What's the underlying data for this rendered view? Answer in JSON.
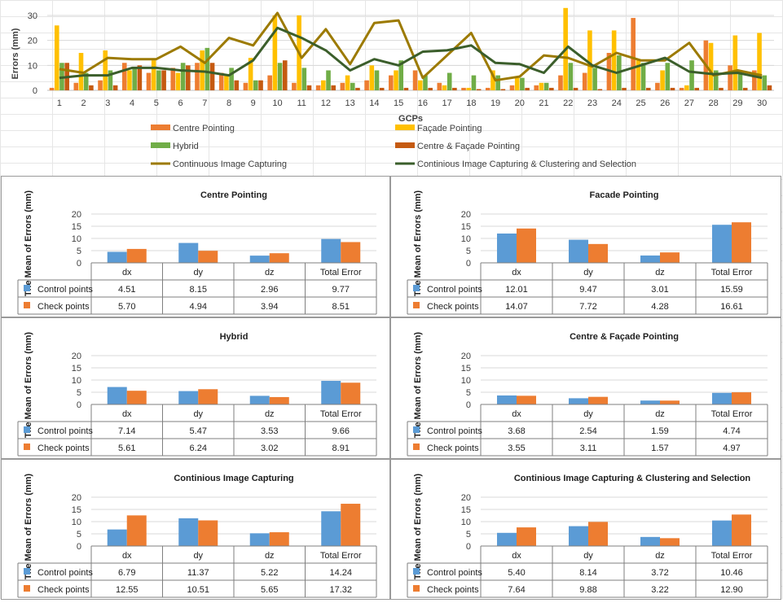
{
  "chart_data": [
    {
      "type": "bar+line",
      "title": "",
      "xlabel": "GCPs",
      "ylabel": "Errors (mm)",
      "ylim": [
        0,
        30
      ],
      "yticks": [
        "0",
        "10",
        "20",
        "30"
      ],
      "categories": [
        "1",
        "2",
        "3",
        "4",
        "5",
        "6",
        "7",
        "8",
        "9",
        "10",
        "11",
        "12",
        "13",
        "14",
        "15",
        "16",
        "17",
        "18",
        "19",
        "20",
        "21",
        "22",
        "23",
        "24",
        "25",
        "26",
        "27",
        "28",
        "29",
        "30"
      ],
      "bar_series": [
        {
          "name": "Centre Pointing",
          "color": "#ED7D31",
          "values": [
            1,
            3,
            4,
            11,
            7,
            9,
            11,
            7,
            3,
            6,
            3,
            2,
            3,
            4,
            6,
            8,
            3,
            1,
            1,
            2,
            2,
            6,
            7,
            15,
            29,
            3,
            1,
            20,
            10,
            8
          ]
        },
        {
          "name": "Façade Pointing",
          "color": "#FFC000",
          "values": [
            26,
            15,
            16,
            8,
            12,
            7,
            16,
            6,
            13,
            30,
            30,
            4,
            6,
            10,
            8,
            4,
            2,
            1,
            8,
            5,
            3,
            33,
            24,
            24,
            12,
            8,
            2,
            19,
            22,
            23
          ]
        },
        {
          "name": "Hybrid",
          "color": "#70AD47",
          "values": [
            11,
            7,
            8,
            9,
            8,
            11,
            17,
            9,
            4,
            11,
            9,
            8,
            3,
            8,
            12,
            6,
            7,
            6,
            6,
            5,
            3,
            11,
            9,
            14,
            11,
            11,
            12,
            8,
            8,
            6
          ]
        },
        {
          "name": "Centre & Façade Pointing",
          "color": "#C55A11",
          "values": [
            11,
            2,
            2,
            10,
            8,
            10,
            11,
            4,
            4,
            12,
            2,
            2,
            1,
            1,
            1,
            1,
            1,
            0.5,
            0.5,
            1,
            1,
            1,
            0.5,
            1,
            1,
            1,
            1,
            1,
            1,
            2
          ]
        }
      ],
      "line_series": [
        {
          "name": "Continuous Image Capturing",
          "color": "#9C7A00",
          "values": [
            8.5,
            7,
            13,
            12.5,
            12.5,
            17.5,
            11,
            21,
            18,
            31,
            13,
            24.5,
            10.5,
            27,
            28,
            5,
            14,
            23,
            4,
            5.5,
            14,
            13,
            9.5,
            15,
            12,
            12,
            19,
            6,
            8,
            6
          ]
        },
        {
          "name": "Continious Image Capturing & Clustering and Selection",
          "color": "#3B5E2B",
          "values": [
            5,
            6,
            6,
            9,
            9,
            8,
            7.5,
            6,
            12,
            25,
            21,
            16,
            8,
            12.5,
            10,
            15.5,
            16,
            18,
            11,
            10.5,
            7,
            17.5,
            10,
            7,
            10,
            13,
            7.5,
            6.5,
            7,
            5
          ]
        }
      ]
    },
    {
      "type": "bar",
      "title": "Centre Pointing",
      "ylabel": "The Mean of Errors (mm)",
      "ylim": [
        0,
        20
      ],
      "yticks": [
        "0",
        "5",
        "10",
        "15",
        "20"
      ],
      "categories": [
        "dx",
        "dy",
        "dz",
        "Total Error"
      ],
      "series": [
        {
          "name": "Control points",
          "color": "#5B9BD5",
          "values": [
            4.51,
            8.15,
            2.96,
            9.77
          ],
          "labels": [
            "4.51",
            "8.15",
            "2.96",
            "9.77"
          ]
        },
        {
          "name": "Check points",
          "color": "#ED7D31",
          "values": [
            5.7,
            4.94,
            3.94,
            8.51
          ],
          "labels": [
            "5.70",
            "4.94",
            "3.94",
            "8.51"
          ]
        }
      ]
    },
    {
      "type": "bar",
      "title": "Facade Pointing",
      "ylabel": "The Mean of Errors (mm)",
      "ylim": [
        0,
        20
      ],
      "yticks": [
        "0",
        "5",
        "10",
        "15",
        "20"
      ],
      "categories": [
        "dx",
        "dy",
        "dz",
        "Total Error"
      ],
      "series": [
        {
          "name": "Control points",
          "color": "#5B9BD5",
          "values": [
            12.01,
            9.47,
            3.01,
            15.59
          ],
          "labels": [
            "12.01",
            "9.47",
            "3.01",
            "15.59"
          ]
        },
        {
          "name": "Check points",
          "color": "#ED7D31",
          "values": [
            14.07,
            7.72,
            4.28,
            16.61
          ],
          "labels": [
            "14.07",
            "7.72",
            "4.28",
            "16.61"
          ]
        }
      ]
    },
    {
      "type": "bar",
      "title": "Hybrid",
      "ylabel": "The Mean of Errors (mm)",
      "ylim": [
        0,
        20
      ],
      "yticks": [
        "0",
        "5",
        "10",
        "15",
        "20"
      ],
      "categories": [
        "dx",
        "dy",
        "dz",
        "Total Error"
      ],
      "series": [
        {
          "name": "Control points",
          "color": "#5B9BD5",
          "values": [
            7.14,
            5.47,
            3.53,
            9.66
          ],
          "labels": [
            "7.14",
            "5.47",
            "3.53",
            "9.66"
          ]
        },
        {
          "name": "Check points",
          "color": "#ED7D31",
          "values": [
            5.61,
            6.24,
            3.02,
            8.91
          ],
          "labels": [
            "5.61",
            "6.24",
            "3.02",
            "8.91"
          ]
        }
      ]
    },
    {
      "type": "bar",
      "title": "Centre & Façade Pointing",
      "ylabel": "The Mean of Errors (mm)",
      "ylim": [
        0,
        20
      ],
      "yticks": [
        "0",
        "5",
        "10",
        "15",
        "20"
      ],
      "categories": [
        "dx",
        "dy",
        "dz",
        "Total Error"
      ],
      "series": [
        {
          "name": "Control points",
          "color": "#5B9BD5",
          "values": [
            3.68,
            2.54,
            1.59,
            4.74
          ],
          "labels": [
            "3.68",
            "2.54",
            "1.59",
            "4.74"
          ]
        },
        {
          "name": "Check points",
          "color": "#ED7D31",
          "values": [
            3.55,
            3.11,
            1.57,
            4.97
          ],
          "labels": [
            "3.55",
            "3.11",
            "1.57",
            "4.97"
          ]
        }
      ]
    },
    {
      "type": "bar",
      "title": "Continious Image Capturing",
      "ylabel": "The Mean of Errors (mm)",
      "ylim": [
        0,
        20
      ],
      "yticks": [
        "0",
        "5",
        "10",
        "15",
        "20"
      ],
      "categories": [
        "dx",
        "dy",
        "dz",
        "Total Error"
      ],
      "series": [
        {
          "name": "Control points",
          "color": "#5B9BD5",
          "values": [
            6.79,
            11.37,
            5.22,
            14.24
          ],
          "labels": [
            "6.79",
            "11.37",
            "5.22",
            "14.24"
          ]
        },
        {
          "name": "Check points",
          "color": "#ED7D31",
          "values": [
            12.55,
            10.51,
            5.65,
            17.32
          ],
          "labels": [
            "12.55",
            "10.51",
            "5.65",
            "17.32"
          ]
        }
      ]
    },
    {
      "type": "bar",
      "title": "Continious Image Capturing & Clustering and Selection",
      "ylabel": "The Mean of Errors (mm)",
      "ylim": [
        0,
        20
      ],
      "yticks": [
        "0",
        "5",
        "10",
        "15",
        "20"
      ],
      "categories": [
        "dx",
        "dy",
        "dz",
        "Total Error"
      ],
      "series": [
        {
          "name": "Control points",
          "color": "#5B9BD5",
          "values": [
            5.4,
            8.14,
            3.72,
            10.46
          ],
          "labels": [
            "5.40",
            "8.14",
            "3.72",
            "10.46"
          ]
        },
        {
          "name": "Check points",
          "color": "#ED7D31",
          "values": [
            7.64,
            9.88,
            3.22,
            12.9
          ],
          "labels": [
            "7.64",
            "9.88",
            "3.22",
            "12.90"
          ]
        }
      ]
    }
  ]
}
